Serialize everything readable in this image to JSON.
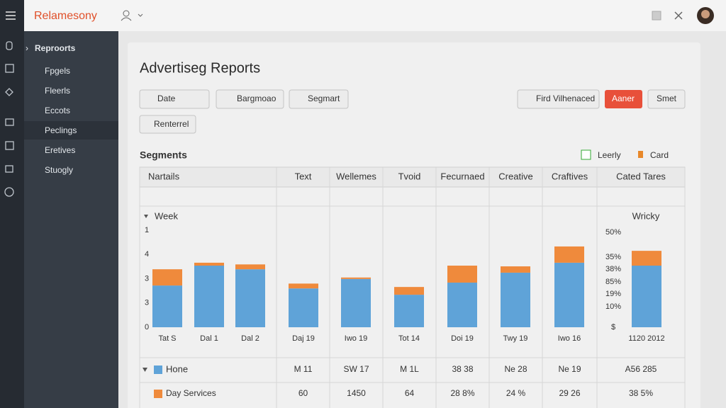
{
  "brand": "Relamesony",
  "sidebar": {
    "heading": "Reproorts",
    "items": [
      "Fpgels",
      "Fleerls",
      "Eccots",
      "Peclings",
      "Eretives",
      "Stuogly"
    ]
  },
  "page_title": "Advertiseg Reports",
  "toolbar": {
    "date": "Date",
    "view": "Bargmoao",
    "segment": "Segmart",
    "find": "Fird Vilhenaced",
    "primary": "Aaner",
    "reset": "Smet",
    "filter": "Renterrel"
  },
  "section_title": "Segments",
  "view_toggle": {
    "list": "Leerly",
    "card": "Card"
  },
  "table": {
    "columns": [
      "Nartails",
      "Text",
      "Wellemes",
      "Tvoid",
      "Fecurnaed",
      "Creative",
      "Craftives",
      "Cated Tares"
    ],
    "rows": [
      {
        "cells": [
          "M 11",
          "SW 17",
          "M 1L",
          "38 38",
          "Ne 28",
          "Ne 19",
          "A56 285"
        ]
      },
      {
        "cells": [
          "60",
          "1450",
          "64",
          "28 8%",
          "24 %",
          "29 26",
          "38 5%"
        ]
      }
    ]
  },
  "chart_data": {
    "type": "bar",
    "stacked": true,
    "title": "Week",
    "right_axis_title": "Wricky",
    "right_axis_labels": [
      "50%",
      "35%",
      "38%",
      "85%",
      "19%",
      "10%",
      "$"
    ],
    "categories": [
      "Tat S",
      "Dal 1",
      "Dal 2",
      "Daj 19",
      "Iwo 19",
      "Tot 14",
      "Doi 19",
      "Twy 19",
      "Iwo 16",
      "1120 2012"
    ],
    "series": [
      {
        "name": "Hone",
        "color": "#5fa3d8",
        "values": [
          1.72,
          2.54,
          2.39,
          1.6,
          1.99,
          1.34,
          1.84,
          2.25,
          2.66,
          2.54
        ]
      },
      {
        "name": "Day Services",
        "color": "#ef8a3c",
        "values": [
          0.67,
          0.12,
          0.2,
          0.2,
          0.06,
          0.32,
          0.7,
          0.26,
          0.67,
          0.61
        ]
      }
    ],
    "ylim": [
      0,
      4
    ],
    "yticks": [
      0,
      {
        "value": 1,
        "label": "3"
      },
      {
        "value": 2,
        "label": "3"
      },
      {
        "value": 3,
        "label": "4"
      },
      {
        "value": 4,
        "label": "1"
      }
    ],
    "grid": false
  }
}
